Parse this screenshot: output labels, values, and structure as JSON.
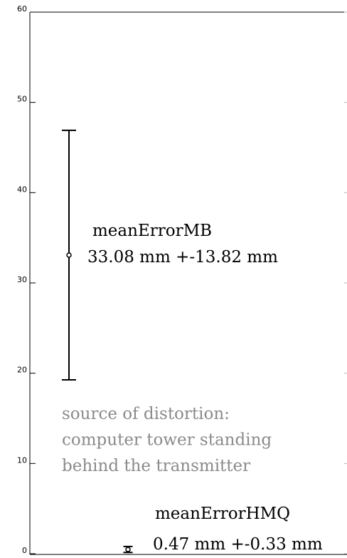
{
  "chart_data": {
    "type": "errorbar",
    "categories": [
      "meanErrorMB",
      "meanErrorHMQ"
    ],
    "values": [
      33.08,
      0.47
    ],
    "errors": [
      13.82,
      0.33
    ],
    "value_labels": [
      "33.08 mm +-13.82 mm",
      "0.47 mm +-0.33 mm"
    ],
    "annotation": [
      "source of distortion:",
      "computer tower standing",
      "behind the transmitter"
    ],
    "color": "#000000",
    "ylim": [
      0,
      60
    ],
    "yticks": [
      0,
      10,
      20,
      30,
      40,
      50,
      60
    ]
  }
}
